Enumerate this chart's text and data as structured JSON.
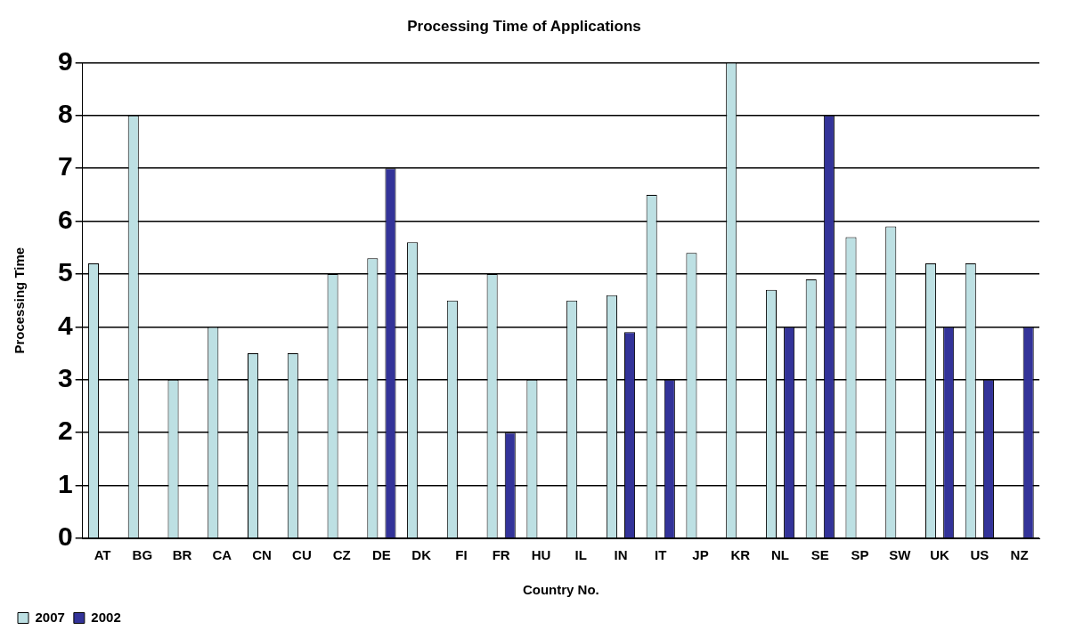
{
  "chart_data": {
    "type": "bar",
    "title": "Processing Time of Applications",
    "xlabel": "Country No.",
    "ylabel": "Processing Time",
    "categories": [
      "AT",
      "BG",
      "BR",
      "CA",
      "CN",
      "CU",
      "CZ",
      "DE",
      "DK",
      "FI",
      "FR",
      "HU",
      "IL",
      "IN",
      "IT",
      "JP",
      "KR",
      "NL",
      "SE",
      "SP",
      "SW",
      "UK",
      "US",
      "NZ"
    ],
    "series": [
      {
        "name": "2007",
        "color": "#bde0e3",
        "values": [
          5.2,
          8,
          3,
          4,
          3.5,
          3.5,
          5,
          5.3,
          5.6,
          4.5,
          5,
          3,
          4.5,
          4.6,
          6.5,
          5.4,
          9,
          4.7,
          4.9,
          5.7,
          5.9,
          5.2,
          5.2,
          0
        ]
      },
      {
        "name": "2002",
        "color": "#333399",
        "values": [
          0,
          0,
          0,
          0,
          0,
          0,
          0,
          7,
          0,
          0,
          2,
          0,
          0,
          3.9,
          3,
          0,
          0,
          4,
          8,
          0,
          0,
          4,
          3,
          4
        ]
      }
    ],
    "ylim": [
      0,
      9
    ],
    "yticks": [
      0,
      1,
      2,
      3,
      4,
      5,
      6,
      7,
      8,
      9
    ],
    "grid": "y",
    "legend": "bottom left"
  }
}
